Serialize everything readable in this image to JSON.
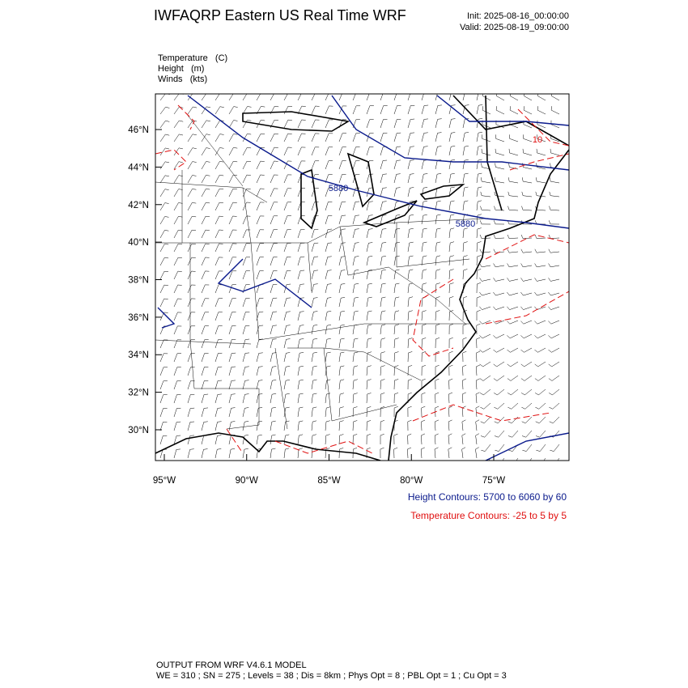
{
  "header": {
    "title": "IWFAQRP Eastern US Real Time WRF",
    "init": "Init: 2025-08-16_00:00:00",
    "valid": "Valid: 2025-08-19_09:00:00"
  },
  "fields": [
    "Temperature   (C)",
    "Height   (m)",
    "Winds   (kts)"
  ],
  "map": {
    "xlim": [
      -95.54,
      -70.43
    ],
    "ylim": [
      28.36,
      47.9
    ],
    "xticks": [
      {
        "value": -95,
        "label": "95°W"
      },
      {
        "value": -90,
        "label": "90°W"
      },
      {
        "value": -85,
        "label": "85°W"
      },
      {
        "value": -80,
        "label": "80°W"
      },
      {
        "value": -75,
        "label": "75°W"
      }
    ],
    "yticks": [
      {
        "value": 30,
        "label": "30°N"
      },
      {
        "value": 32,
        "label": "32°N"
      },
      {
        "value": 34,
        "label": "34°N"
      },
      {
        "value": 36,
        "label": "36°N"
      },
      {
        "value": 38,
        "label": "38°N"
      },
      {
        "value": 40,
        "label": "40°N"
      },
      {
        "value": 42,
        "label": "42°N"
      },
      {
        "value": 44,
        "label": "44°N"
      },
      {
        "value": 46,
        "label": "46°N"
      }
    ],
    "contour_labels": [
      "5880",
      "5880",
      "10"
    ]
  },
  "legend": {
    "height": "Height Contours: 5700 to 6060 by 60",
    "temperature": "Temperature Contours: -25 to 5 by 5"
  },
  "footer": {
    "line1": "OUTPUT FROM WRF V4.6.1 MODEL",
    "line2": "WE = 310 ; SN = 275 ; Levels = 38 ; Dis = 8km ; Phys Opt = 8 ; PBL Opt = 1 ; Cu Opt = 3"
  }
}
